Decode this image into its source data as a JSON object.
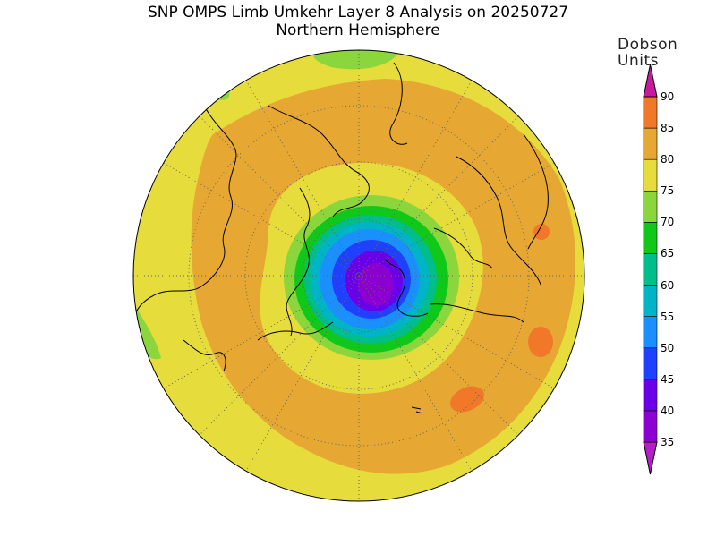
{
  "title": {
    "line1": "SNP OMPS Limb Umkehr Layer 8 Analysis on 20250727",
    "line2": "Northern Hemisphere"
  },
  "legend": {
    "units_line1": "Dobson",
    "units_line2": "Units",
    "levels": [
      {
        "value": 35,
        "color": "#8b00d0"
      },
      {
        "value": 40,
        "color": "#6a00e8"
      },
      {
        "value": 45,
        "color": "#2040ff"
      },
      {
        "value": 50,
        "color": "#1a90ff"
      },
      {
        "value": 55,
        "color": "#00b4c8"
      },
      {
        "value": 60,
        "color": "#00be8c"
      },
      {
        "value": 65,
        "color": "#10c81a"
      },
      {
        "value": 70,
        "color": "#8ad63c"
      },
      {
        "value": 75,
        "color": "#e6dc3c"
      },
      {
        "value": 80,
        "color": "#e6a832"
      },
      {
        "value": 85,
        "color": "#f07828"
      },
      {
        "value": 90,
        "color": "#e60000"
      }
    ],
    "over_color": "#c81aa0",
    "under_color": "#b41ec8"
  },
  "map": {
    "projection": "polar-stereographic",
    "hemisphere": "north",
    "background_color": "#e6dc3c"
  }
}
